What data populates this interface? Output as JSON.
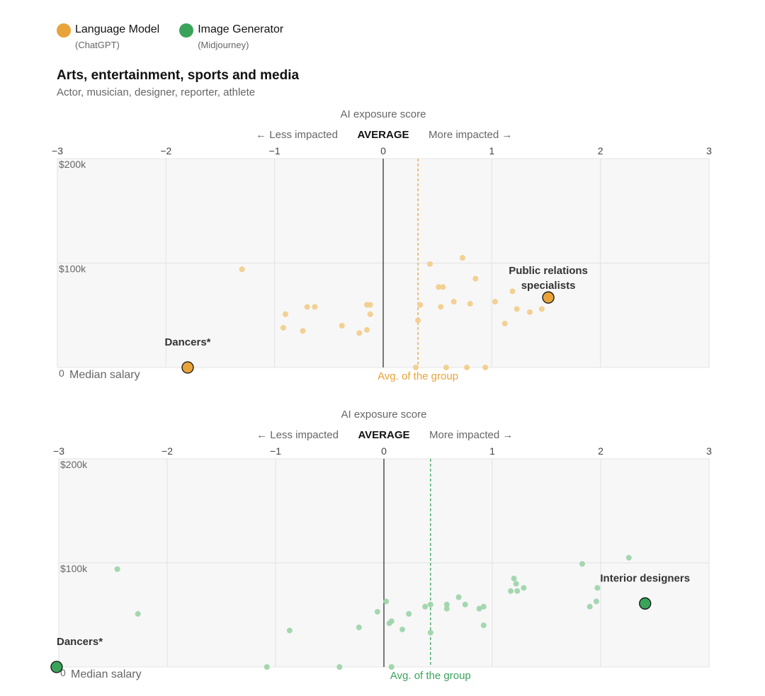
{
  "legend": {
    "items": [
      {
        "label": "Language Model",
        "sub": "(ChatGPT)",
        "color": "#e8a33a"
      },
      {
        "label": "Image Generator",
        "sub": "(Midjourney)",
        "color": "#3aa35a"
      }
    ]
  },
  "section": {
    "title": "Arts, entertainment, sports and media",
    "subtitle": "Actor, musician, designer, reporter, athlete"
  },
  "chart_data": [
    {
      "type": "scatter",
      "series_name": "Language Model",
      "color": "#e8a33a",
      "light_color": "#f2cd8d",
      "title": "AI exposure score",
      "less_label": "← Less impacted",
      "average_label": "AVERAGE",
      "more_label": "More impacted →",
      "xlim": [
        -3,
        3
      ],
      "x_ticks": [
        "−3",
        "−2",
        "−1",
        "0",
        "1",
        "2",
        "3"
      ],
      "ylim": [
        0,
        200000
      ],
      "y_ticks": [
        {
          "value": 200000,
          "label": "$200k"
        },
        {
          "value": 100000,
          "label": "$100k"
        },
        {
          "value": 0,
          "label": "0"
        }
      ],
      "ylabel": "Median salary",
      "group_avg": 0.32,
      "group_avg_label": "Avg. of the group",
      "points": [
        {
          "x": -1.3,
          "y": 94000
        },
        {
          "x": -0.9,
          "y": 51000
        },
        {
          "x": -0.92,
          "y": 38000
        },
        {
          "x": -0.7,
          "y": 58000
        },
        {
          "x": -0.63,
          "y": 58000
        },
        {
          "x": -0.74,
          "y": 35000
        },
        {
          "x": -0.38,
          "y": 40000
        },
        {
          "x": -0.22,
          "y": 33000
        },
        {
          "x": -0.15,
          "y": 60000
        },
        {
          "x": -0.12,
          "y": 60000
        },
        {
          "x": -0.12,
          "y": 51000
        },
        {
          "x": -0.15,
          "y": 36000
        },
        {
          "x": 0.3,
          "y": 0
        },
        {
          "x": 0.32,
          "y": 45000
        },
        {
          "x": 0.34,
          "y": 60000
        },
        {
          "x": 0.43,
          "y": 99000
        },
        {
          "x": 0.51,
          "y": 77000
        },
        {
          "x": 0.55,
          "y": 77000
        },
        {
          "x": 0.53,
          "y": 58000
        },
        {
          "x": 0.58,
          "y": 0
        },
        {
          "x": 0.65,
          "y": 63000
        },
        {
          "x": 0.73,
          "y": 105000
        },
        {
          "x": 0.77,
          "y": 0
        },
        {
          "x": 0.8,
          "y": 61000
        },
        {
          "x": 0.85,
          "y": 85000
        },
        {
          "x": 0.94,
          "y": 0
        },
        {
          "x": 1.03,
          "y": 63000
        },
        {
          "x": 1.12,
          "y": 42000
        },
        {
          "x": 1.23,
          "y": 56000
        },
        {
          "x": 1.35,
          "y": 53000
        },
        {
          "x": 1.46,
          "y": 56000
        },
        {
          "x": 1.19,
          "y": 73000
        }
      ],
      "highlights": [
        {
          "name": "Public relations specialists",
          "line1": "Public relations",
          "line2": "specialists",
          "x": 1.52,
          "y": 67000
        },
        {
          "name": "Dancers*",
          "line1": "Dancers*",
          "line2": "",
          "x": -1.8,
          "y": 0
        }
      ]
    },
    {
      "type": "scatter",
      "series_name": "Image Generator",
      "color": "#3aa35a",
      "light_color": "#9fd5ab",
      "title": "AI exposure score",
      "less_label": "← Less impacted",
      "average_label": "AVERAGE",
      "more_label": "More impacted →",
      "xlim": [
        -3,
        3
      ],
      "x_ticks": [
        "−3",
        "−2",
        "−1",
        "0",
        "1",
        "2",
        "3"
      ],
      "ylim": [
        0,
        200000
      ],
      "y_ticks": [
        {
          "value": 200000,
          "label": "$200k"
        },
        {
          "value": 100000,
          "label": "$100k"
        },
        {
          "value": 0,
          "label": "0"
        }
      ],
      "ylabel": "Median salary",
      "group_avg": 0.43,
      "group_avg_label": "Avg. of the group",
      "points": [
        {
          "x": -2.46,
          "y": 94000
        },
        {
          "x": -2.27,
          "y": 51000
        },
        {
          "x": -1.08,
          "y": 0
        },
        {
          "x": -0.87,
          "y": 35000
        },
        {
          "x": -0.41,
          "y": 0
        },
        {
          "x": -0.23,
          "y": 38000
        },
        {
          "x": -0.06,
          "y": 53000
        },
        {
          "x": 0.02,
          "y": 63000
        },
        {
          "x": 0.05,
          "y": 42000
        },
        {
          "x": 0.07,
          "y": 44000
        },
        {
          "x": 0.07,
          "y": 0
        },
        {
          "x": 0.17,
          "y": 36000
        },
        {
          "x": 0.23,
          "y": 51000
        },
        {
          "x": 0.38,
          "y": 58000
        },
        {
          "x": 0.43,
          "y": 60000
        },
        {
          "x": 0.43,
          "y": 33000
        },
        {
          "x": 0.58,
          "y": 56000
        },
        {
          "x": 0.58,
          "y": 60000
        },
        {
          "x": 0.69,
          "y": 67000
        },
        {
          "x": 0.75,
          "y": 60000
        },
        {
          "x": 0.88,
          "y": 56000
        },
        {
          "x": 0.92,
          "y": 58000
        },
        {
          "x": 0.92,
          "y": 40000
        },
        {
          "x": 1.17,
          "y": 73000
        },
        {
          "x": 1.2,
          "y": 85000
        },
        {
          "x": 1.22,
          "y": 80000
        },
        {
          "x": 1.23,
          "y": 73000
        },
        {
          "x": 1.29,
          "y": 76000
        },
        {
          "x": 1.83,
          "y": 99000
        },
        {
          "x": 1.9,
          "y": 58000
        },
        {
          "x": 1.96,
          "y": 63000
        },
        {
          "x": 1.97,
          "y": 76000
        },
        {
          "x": 2.26,
          "y": 105000
        }
      ],
      "highlights": [
        {
          "name": "Interior designers",
          "line1": "Interior designers",
          "line2": "",
          "x": 2.41,
          "y": 61000
        },
        {
          "name": "Dancers*",
          "line1": "Dancers*",
          "line2": "",
          "x": -3.02,
          "y": 0
        }
      ]
    }
  ]
}
